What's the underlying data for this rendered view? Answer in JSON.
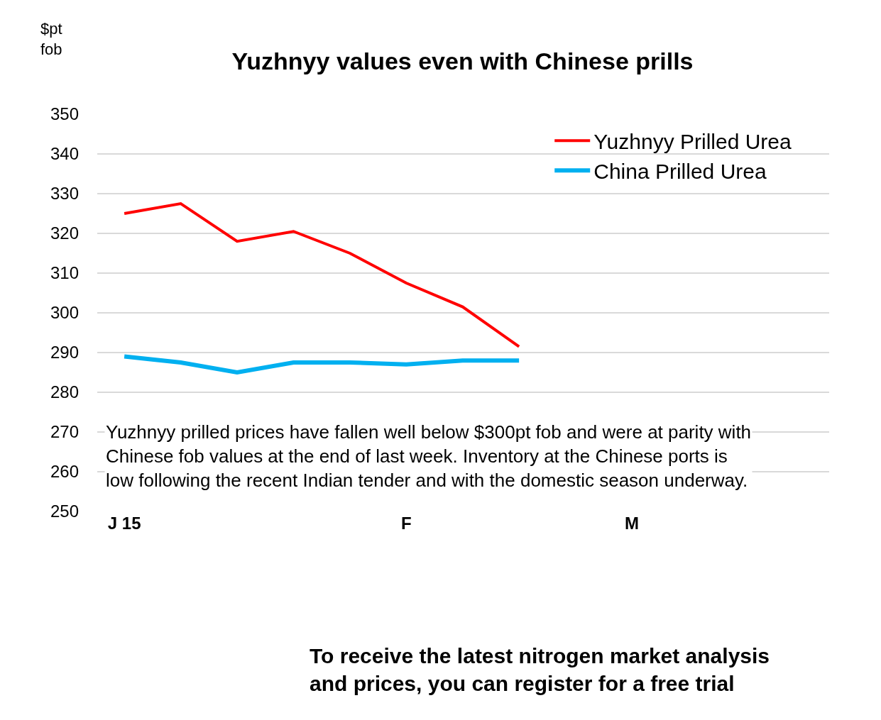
{
  "chart_data": {
    "type": "line",
    "title": "Yuzhnyy values even with Chinese prills",
    "ylabel": "$pt\nfob",
    "categories": [
      "J 15",
      null,
      null,
      null,
      null,
      "F",
      null,
      null,
      null,
      "M",
      null,
      null,
      null
    ],
    "series": [
      {
        "name": "Yuzhnyy Prilled Urea",
        "color": "#ff0000",
        "values": [
          325,
          327.5,
          318,
          320.5,
          315,
          307.5,
          301.5,
          291.5,
          null,
          null,
          null,
          null,
          null
        ]
      },
      {
        "name": "China Prilled Urea",
        "color": "#00b0f0",
        "values": [
          289,
          287.5,
          285,
          287.5,
          287.5,
          287,
          288,
          288,
          null,
          null,
          null,
          null,
          null
        ]
      }
    ],
    "ylim": [
      250,
      350
    ],
    "yticks": [
      250,
      260,
      270,
      280,
      290,
      300,
      310,
      320,
      330,
      340,
      350
    ],
    "grid": "y",
    "legend": "top right",
    "marker": "none",
    "line_style": "solid",
    "annotations": [
      "Yuzhnyy prilled prices have fallen well below $300pt fob and were at parity with\nChinese fob values at the end of last week. Inventory at the Chinese ports is\nlow following the recent Indian tender and with the domestic season underway.",
      "To receive the latest nitrogen market analysis\nand prices, you can register for a free trial"
    ]
  }
}
